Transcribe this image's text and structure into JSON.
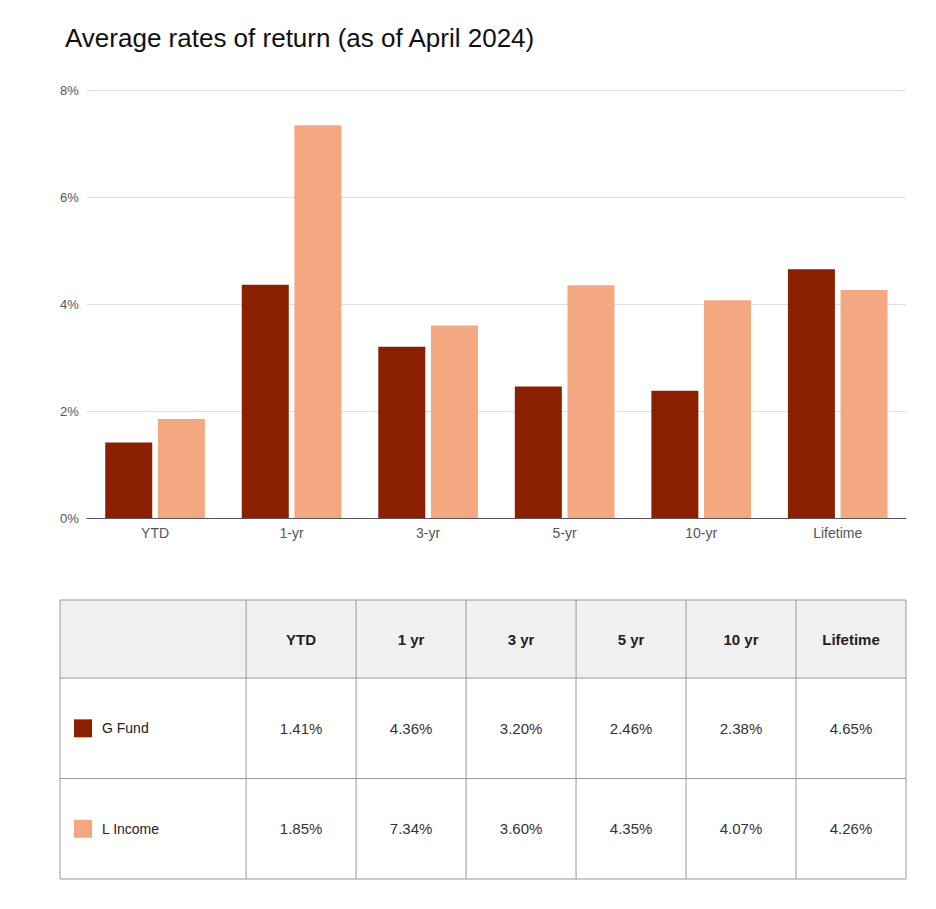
{
  "chart_data": {
    "type": "bar",
    "title": "Average rates of return (as of April 2024)",
    "categories": [
      "YTD",
      "1-yr",
      "3-yr",
      "5-yr",
      "10-yr",
      "Lifetime"
    ],
    "series": [
      {
        "name": "G Fund",
        "color": "#8B2000",
        "values": [
          1.41,
          4.36,
          3.2,
          2.46,
          2.38,
          4.65
        ],
        "value_labels": [
          "1.41%",
          "4.36%",
          "3.20%",
          "2.46%",
          "2.38%",
          "4.65%"
        ]
      },
      {
        "name": "L Income",
        "color": "#F4A882",
        "values": [
          1.85,
          7.34,
          3.6,
          4.35,
          4.07,
          4.26
        ],
        "value_labels": [
          "1.85%",
          "7.34%",
          "3.60%",
          "4.35%",
          "4.07%",
          "4.26%"
        ]
      }
    ],
    "ylim": [
      0,
      8
    ],
    "yticks": [
      {
        "value": 0,
        "label": "0%"
      },
      {
        "value": 2,
        "label": "2%"
      },
      {
        "value": 4,
        "label": "4%"
      },
      {
        "value": 6,
        "label": "6%"
      },
      {
        "value": 8,
        "label": "8%"
      }
    ],
    "grid": true,
    "table_headers": [
      "YTD",
      "1 yr",
      "3 yr",
      "5 yr",
      "10 yr",
      "Lifetime"
    ]
  }
}
